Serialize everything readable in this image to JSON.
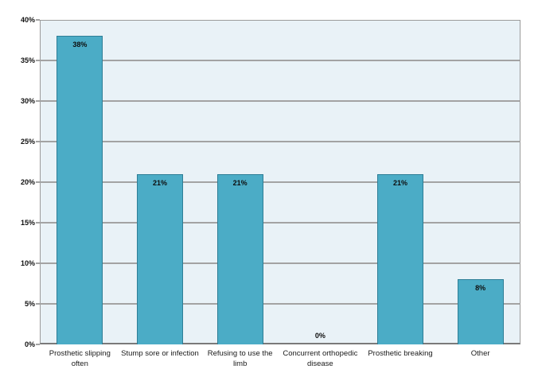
{
  "chart_data": {
    "type": "bar",
    "title": "",
    "xlabel": "",
    "ylabel": "",
    "categories": [
      "Prosthetic slipping often",
      "Stump sore or infection",
      "Refusing to use the limb",
      "Concurrent orthopedic disease",
      "Prosthetic breaking",
      "Other"
    ],
    "values": [
      38,
      21,
      21,
      0,
      21,
      8
    ],
    "data_labels": [
      "38%",
      "21%",
      "21%",
      "0%",
      "21%",
      "8%"
    ],
    "ylim": [
      0,
      40
    ],
    "ytick_step": 5,
    "ytick_labels": [
      "0%",
      "5%",
      "10%",
      "15%",
      "20%",
      "25%",
      "30%",
      "35%",
      "40%"
    ],
    "grid": true,
    "legend": "none",
    "colors": {
      "bar_fill": "#4BACC6",
      "bar_border": "#2E7E96",
      "plot_background": "#E9F2F7",
      "gridline": "#A3A3A3",
      "plot_border": "#9B9B9B",
      "axis_line": "#7A7A7A",
      "label_text": "#111111",
      "page_background": "#FFFFFF"
    }
  }
}
